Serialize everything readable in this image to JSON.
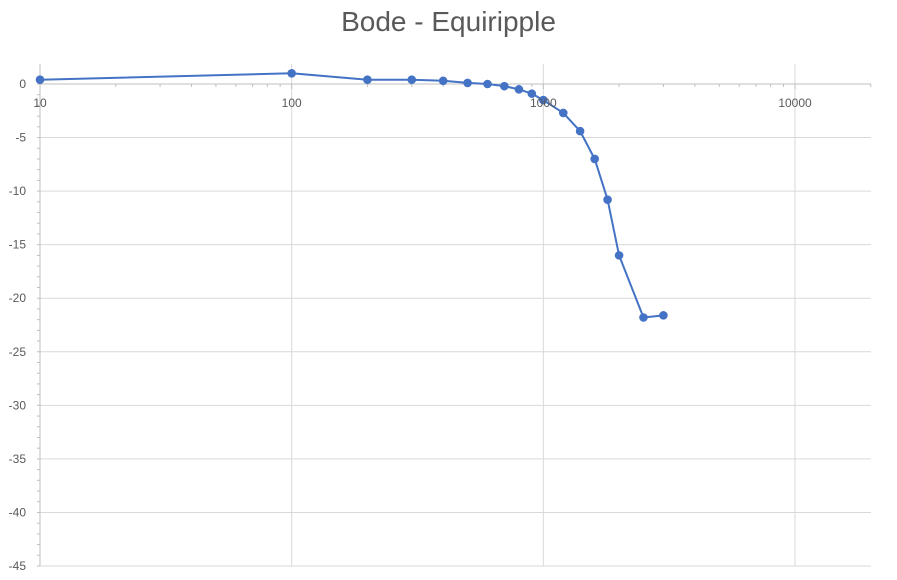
{
  "chart_data": {
    "type": "line",
    "title": "Bode - Equiripple",
    "xlabel": "",
    "ylabel": "",
    "x_scale": "log",
    "xlim": [
      10,
      30000
    ],
    "ylim": [
      -45,
      0
    ],
    "x_ticks": [
      10,
      100,
      1000,
      10000
    ],
    "x_tick_labels": [
      "10",
      "100",
      "1000",
      "10000"
    ],
    "y_ticks": [
      0,
      -5,
      -10,
      -15,
      -20,
      -25,
      -30,
      -35,
      -40,
      -45
    ],
    "y_tick_labels": [
      "0",
      "-5",
      "-10",
      "-15",
      "-20",
      "-25",
      "-30",
      "-35",
      "-40",
      "-45"
    ],
    "grid": true,
    "legend": "none",
    "series": [
      {
        "color": "#4472C4",
        "x": [
          10,
          100,
          200,
          300,
          400,
          500,
          600,
          700,
          800,
          900,
          1000,
          1200,
          1400,
          1600,
          1800,
          2000,
          2500,
          3000
        ],
        "y": [
          0.4,
          1.0,
          0.4,
          0.4,
          0.3,
          0.1,
          0.0,
          -0.2,
          -0.5,
          -0.9,
          -1.5,
          -2.7,
          -4.4,
          -7.0,
          -10.8,
          -16.0,
          -21.8,
          -21.6
        ]
      }
    ]
  }
}
